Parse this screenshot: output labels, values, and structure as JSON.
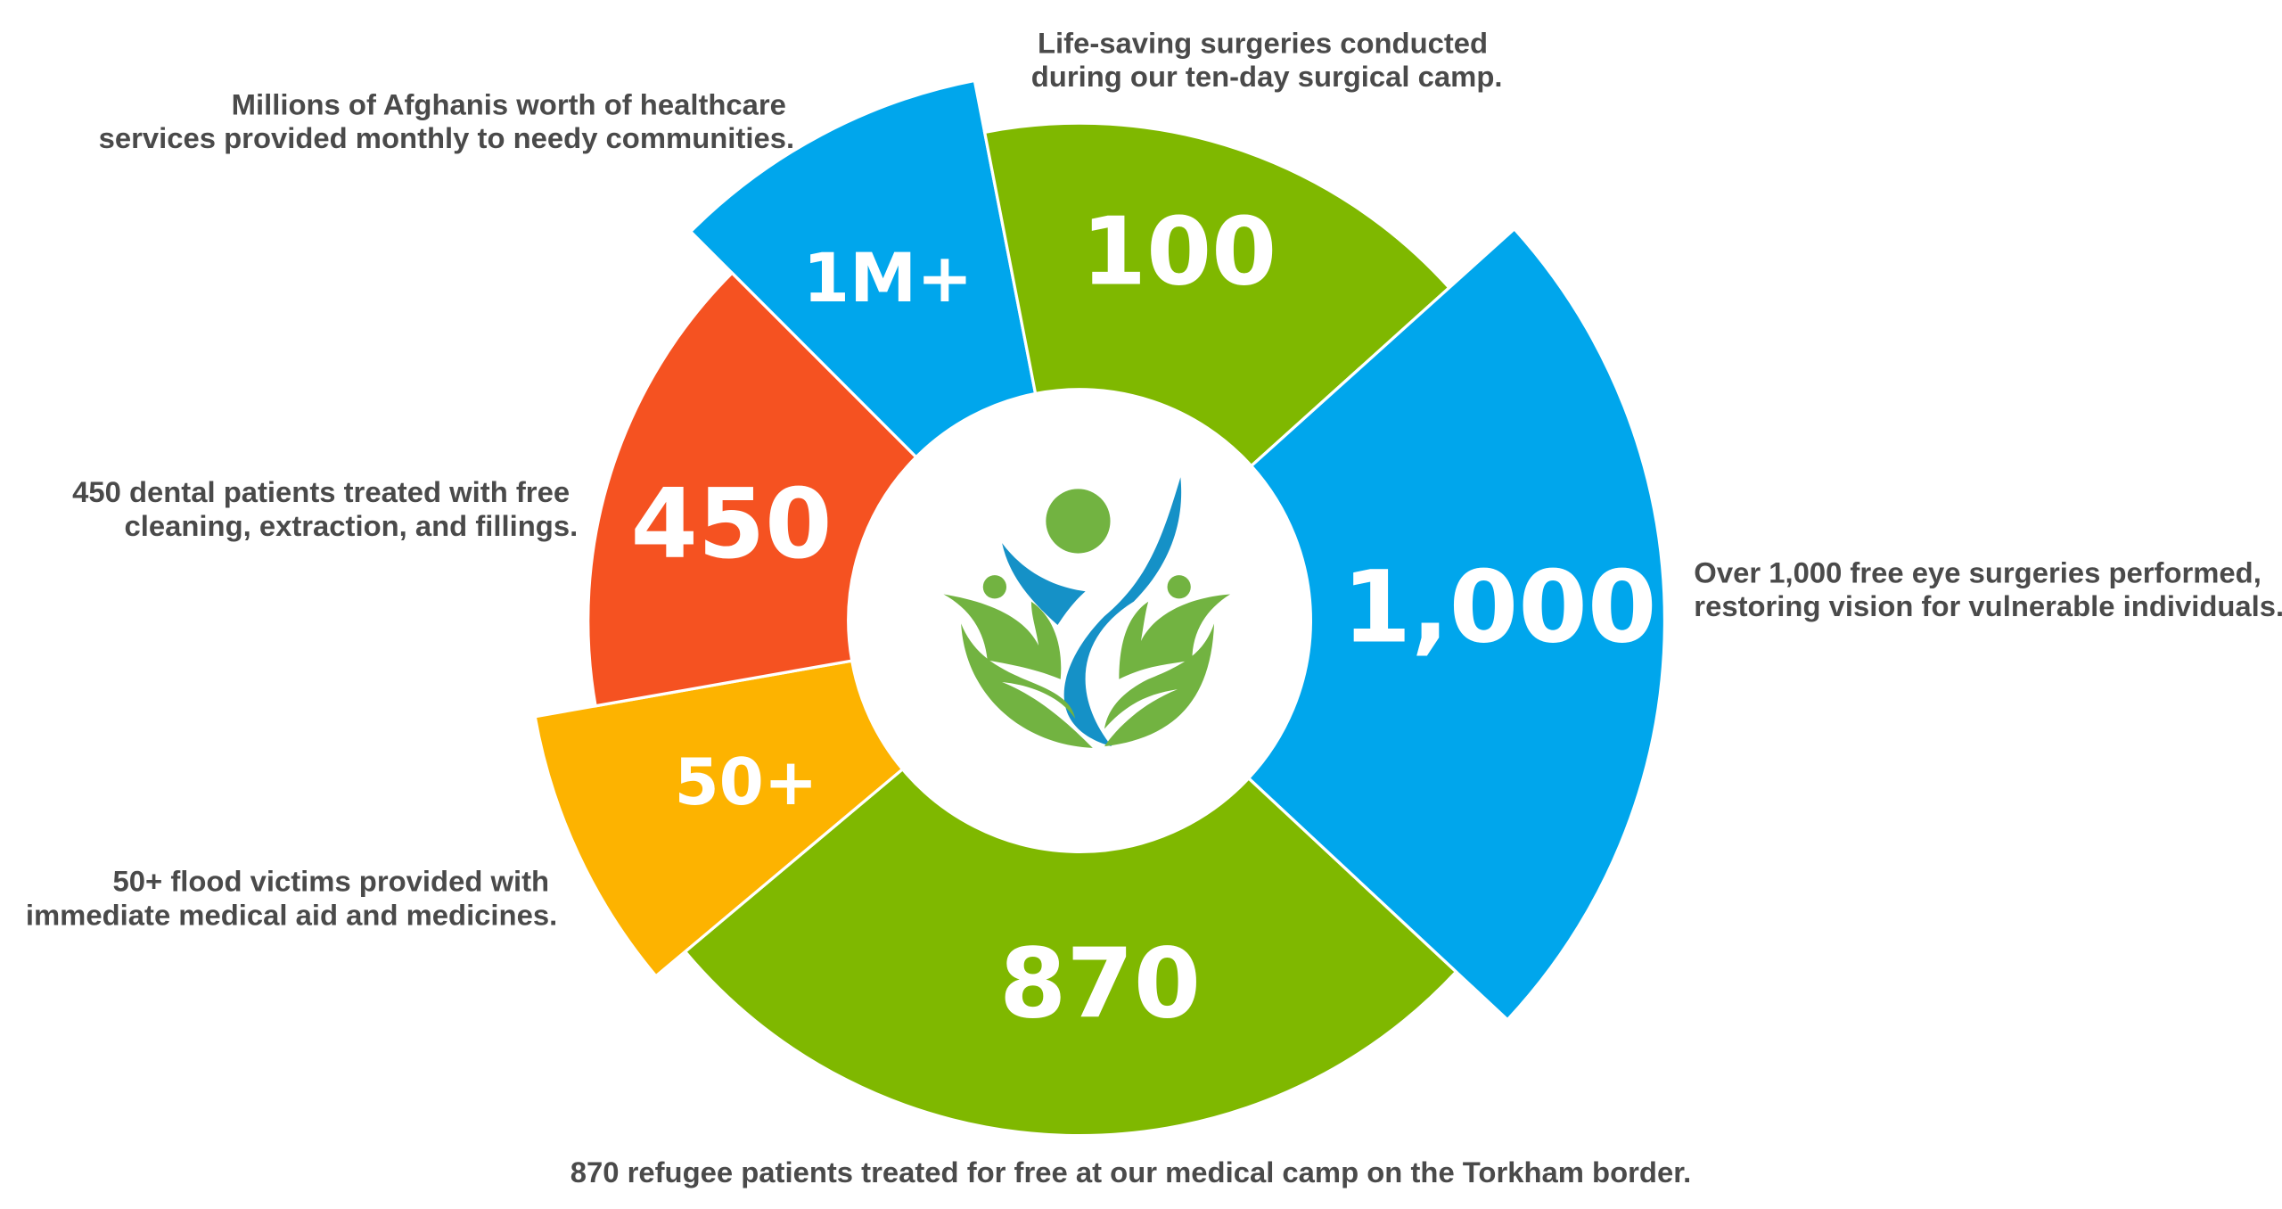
{
  "chart_data": {
    "type": "pie",
    "variant": "rose (variable-radius donut)",
    "legend": "none",
    "center_logo": "people-leaves-logo",
    "segments": [
      {
        "value_label": "1M+",
        "description": [
          "Millions of Afghanis worth of healthcare",
          "services provided monthly to needy communities."
        ],
        "color": "#00a6ec"
      },
      {
        "value_label": "100",
        "description": [
          "Life-saving surgeries conducted",
          "during our ten-day surgical camp."
        ],
        "color": "#7fb800"
      },
      {
        "value_label": "1,000",
        "description": [
          "Over 1,000 free eye surgeries performed,",
          "restoring vision for vulnerable individuals."
        ],
        "color": "#00a6ec"
      },
      {
        "value_label": "870",
        "description": [
          "870 refugee patients treated for free at our medical camp on the Torkham border."
        ],
        "color": "#7fb800"
      },
      {
        "value_label": "50+",
        "description": [
          "50+ flood victims provided with",
          "immediate medical aid and medicines."
        ],
        "color": "#fdb300"
      },
      {
        "value_label": "450",
        "description": [
          "450 dental patients treated with free",
          "cleaning, extraction, and fillings."
        ],
        "color": "#f55221"
      }
    ]
  },
  "logo_colors": {
    "green": "#72b341",
    "blue": "#1591c7"
  }
}
